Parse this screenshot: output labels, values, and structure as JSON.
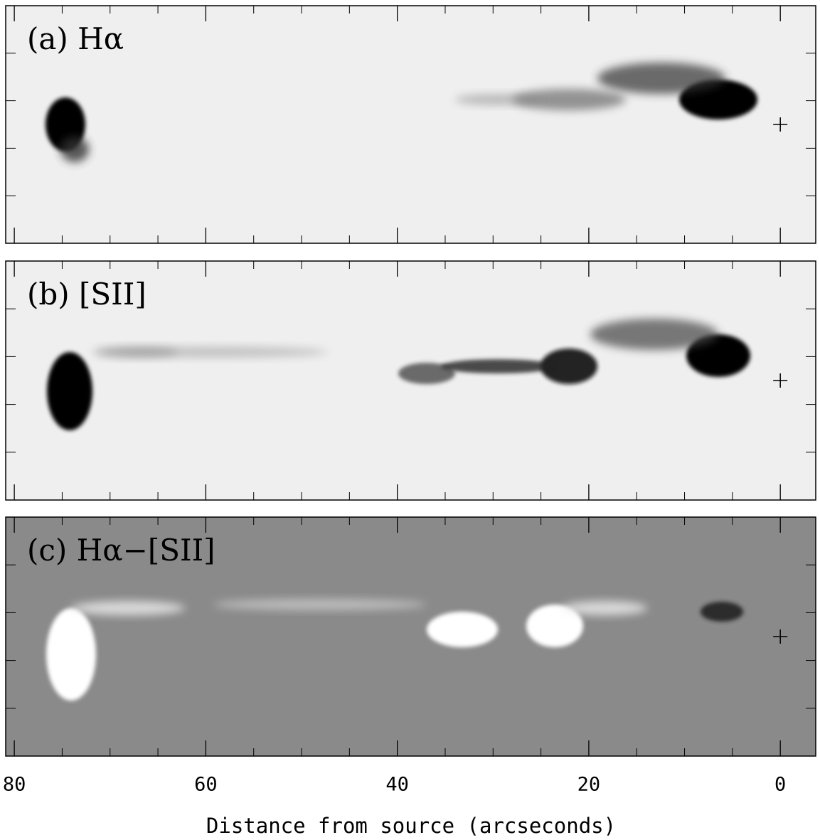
{
  "chart_data": {
    "type": "image",
    "xlabel": "Distance from source (arcseconds)",
    "xlim": [
      80.9,
      -3.7
    ],
    "xticks": [
      80,
      60,
      40,
      20,
      0
    ],
    "xminor": [
      75,
      70,
      65,
      55,
      50,
      45,
      35,
      30,
      25,
      15,
      10,
      5
    ],
    "panels": [
      {
        "label": "(a) Hα",
        "background": "#efefef"
      },
      {
        "label": "(b) [SII]",
        "background": "#efefef"
      },
      {
        "label": "(c) Hα−[SII]",
        "background": "#8a8a8a"
      }
    ]
  }
}
